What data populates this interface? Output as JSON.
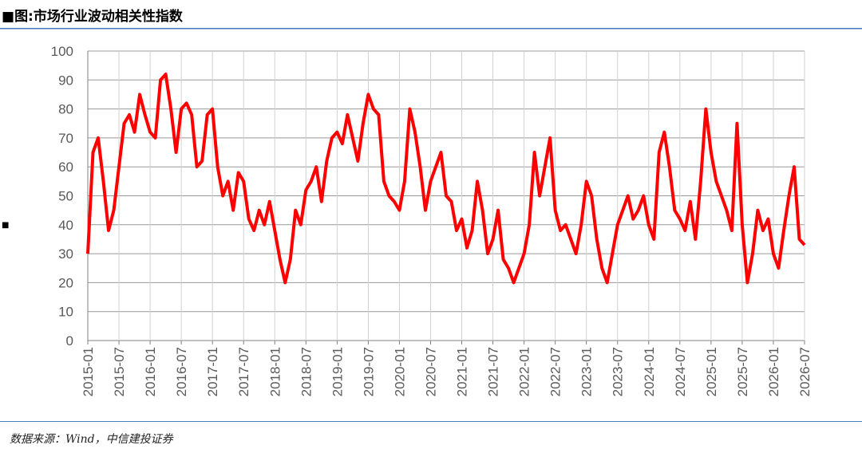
{
  "chart_data": {
    "type": "line",
    "title": "图:市场行业波动相关性指数",
    "source": "数据来源：Wind，中信建投证券",
    "color": "#ff0000",
    "grid": true,
    "xlim": [
      "2015-01",
      "2026-07"
    ],
    "xticks": [
      "2015-01",
      "2015-07",
      "2016-01",
      "2016-07",
      "2017-01",
      "2017-07",
      "2018-01",
      "2018-07",
      "2019-01",
      "2019-07",
      "2020-01",
      "2020-07",
      "2021-01",
      "2021-07",
      "2022-01",
      "2022-07",
      "2023-01",
      "2023-07",
      "2024-01",
      "2024-07",
      "2025-01",
      "2025-07",
      "2026-01",
      "2026-07"
    ],
    "ylim": [
      0,
      100
    ],
    "yticks": [
      0,
      10,
      20,
      30,
      40,
      50,
      60,
      70,
      80,
      90,
      100
    ],
    "x": [
      "2015-01",
      "2015-02",
      "2015-03",
      "2015-04",
      "2015-05",
      "2015-06",
      "2015-07",
      "2015-08",
      "2015-09",
      "2015-10",
      "2015-11",
      "2015-12",
      "2016-01",
      "2016-02",
      "2016-03",
      "2016-04",
      "2016-05",
      "2016-06",
      "2016-07",
      "2016-08",
      "2016-09",
      "2016-10",
      "2016-11",
      "2016-12",
      "2017-01",
      "2017-02",
      "2017-03",
      "2017-04",
      "2017-05",
      "2017-06",
      "2017-07",
      "2017-08",
      "2017-09",
      "2017-10",
      "2017-11",
      "2017-12",
      "2018-01",
      "2018-02",
      "2018-03",
      "2018-04",
      "2018-05",
      "2018-06",
      "2018-07",
      "2018-08",
      "2018-09",
      "2018-10",
      "2018-11",
      "2018-12",
      "2019-01",
      "2019-02",
      "2019-03",
      "2019-04",
      "2019-05",
      "2019-06",
      "2019-07",
      "2019-08",
      "2019-09",
      "2019-10",
      "2019-11",
      "2019-12",
      "2020-01",
      "2020-02",
      "2020-03",
      "2020-04",
      "2020-05",
      "2020-06",
      "2020-07",
      "2020-08",
      "2020-09",
      "2020-10",
      "2020-11",
      "2020-12",
      "2021-01",
      "2021-02",
      "2021-03",
      "2021-04",
      "2021-05",
      "2021-06",
      "2021-07",
      "2021-08",
      "2021-09",
      "2021-10",
      "2021-11",
      "2021-12",
      "2022-01",
      "2022-02",
      "2022-03",
      "2022-04",
      "2022-05",
      "2022-06",
      "2022-07",
      "2022-08",
      "2022-09",
      "2022-10",
      "2022-11",
      "2022-12",
      "2023-01",
      "2023-02",
      "2023-03",
      "2023-04",
      "2023-05",
      "2023-06",
      "2023-07",
      "2023-08",
      "2023-09",
      "2023-10",
      "2023-11",
      "2023-12",
      "2024-01",
      "2024-02",
      "2024-03",
      "2024-04",
      "2024-05",
      "2024-06",
      "2024-07",
      "2024-08",
      "2024-09",
      "2024-10",
      "2024-11",
      "2024-12",
      "2025-01",
      "2025-02",
      "2025-03",
      "2025-04",
      "2025-05",
      "2025-06",
      "2025-07",
      "2025-08",
      "2025-09",
      "2025-10",
      "2025-11",
      "2025-12",
      "2026-01",
      "2026-02",
      "2026-03",
      "2026-04",
      "2026-05",
      "2026-06",
      "2026-07"
    ],
    "values": [
      30,
      65,
      70,
      55,
      38,
      45,
      60,
      75,
      78,
      72,
      85,
      78,
      72,
      70,
      90,
      92,
      80,
      65,
      80,
      82,
      78,
      60,
      62,
      78,
      80,
      60,
      50,
      55,
      45,
      58,
      55,
      42,
      38,
      45,
      40,
      48,
      38,
      28,
      20,
      28,
      45,
      40,
      52,
      55,
      60,
      48,
      62,
      70,
      72,
      68,
      78,
      70,
      62,
      75,
      85,
      80,
      78,
      55,
      50,
      48,
      45,
      55,
      80,
      72,
      60,
      45,
      55,
      60,
      65,
      50,
      48,
      38,
      42,
      32,
      38,
      55,
      45,
      30,
      35,
      45,
      28,
      25,
      20,
      25,
      30,
      40,
      65,
      50,
      60,
      70,
      45,
      38,
      40,
      35,
      30,
      40,
      55,
      50,
      35,
      25,
      20,
      30,
      40,
      45,
      50,
      42,
      45,
      50,
      40,
      35,
      65,
      72,
      60,
      45,
      42,
      38,
      48,
      35,
      55,
      80,
      65,
      55,
      50,
      45,
      38,
      75,
      40,
      20,
      30,
      45,
      38,
      42,
      30,
      25,
      38,
      50,
      60,
      35,
      33
    ]
  }
}
